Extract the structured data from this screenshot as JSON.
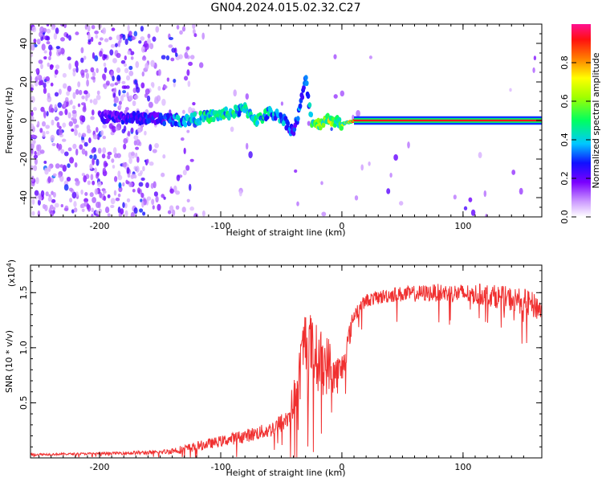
{
  "title": "GN04.2024.015.02.32.C27",
  "chart_data": [
    {
      "type": "heatmap",
      "xlabel": "Height of straight line (km)",
      "ylabel": "Frequency (Hz)",
      "xlim": [
        -257,
        165
      ],
      "ylim": [
        -50,
        50
      ],
      "xticks": [
        -200,
        -100,
        0,
        100
      ],
      "yticks": [
        -40,
        -20,
        0,
        20,
        40
      ],
      "colorbar": {
        "label": "Normalized spectral amplitude",
        "range": [
          0,
          1
        ],
        "ticks": [
          0.0,
          0.2,
          0.4,
          0.6,
          0.8
        ],
        "tick_labels": [
          "0.0",
          "0.2",
          "0.4",
          "0.6",
          "0.8"
        ],
        "colormap": "rainbow"
      },
      "trace": {
        "x": [
          -200,
          -150,
          -130,
          -110,
          -90,
          -80,
          -70,
          -60,
          -50,
          -40,
          -35,
          -30,
          -25,
          -20,
          -10,
          0,
          10,
          50,
          165
        ],
        "y": [
          2,
          1,
          0,
          2,
          4,
          6,
          0,
          4,
          2,
          -6,
          5,
          22,
          0,
          -2,
          1,
          -2,
          0,
          0,
          0
        ],
        "amplitude": [
          0.25,
          0.3,
          0.45,
          0.5,
          0.5,
          0.45,
          0.5,
          0.45,
          0.4,
          0.3,
          0.35,
          0.3,
          0.5,
          0.6,
          0.7,
          0.6,
          0.85,
          0.9,
          0.95
        ]
      }
    },
    {
      "type": "line",
      "xlabel": "Height of straight line (km)",
      "ylabel": "SNR (10 * v/v)",
      "yscale_label": "(x10",
      "yscale_exp": "4",
      "xlim": [
        -257,
        165
      ],
      "ylim": [
        0,
        1.75
      ],
      "xticks": [
        -200,
        -100,
        0,
        100
      ],
      "yticks": [
        0.5,
        1.0,
        1.5
      ],
      "ytick_labels": [
        "0.5",
        "1.0",
        "1.5"
      ],
      "series": [
        {
          "color": "#f03030",
          "x": [
            -257,
            -200,
            -150,
            -130,
            -100,
            -80,
            -60,
            -45,
            -38,
            -33,
            -30,
            -25,
            -20,
            -15,
            -10,
            -5,
            0,
            10,
            20,
            40,
            80,
            120,
            150,
            165
          ],
          "y": [
            0.03,
            0.04,
            0.05,
            0.08,
            0.15,
            0.2,
            0.25,
            0.35,
            0.55,
            0.9,
            1.1,
            1.0,
            0.9,
            0.85,
            0.85,
            0.75,
            0.8,
            1.3,
            1.43,
            1.48,
            1.5,
            1.48,
            1.42,
            1.35
          ],
          "noise": [
            0.01,
            0.01,
            0.02,
            0.04,
            0.05,
            0.06,
            0.07,
            0.1,
            0.25,
            0.3,
            0.3,
            0.3,
            0.3,
            0.3,
            0.25,
            0.2,
            0.15,
            0.08,
            0.06,
            0.07,
            0.08,
            0.1,
            0.12,
            0.12
          ]
        }
      ]
    }
  ]
}
